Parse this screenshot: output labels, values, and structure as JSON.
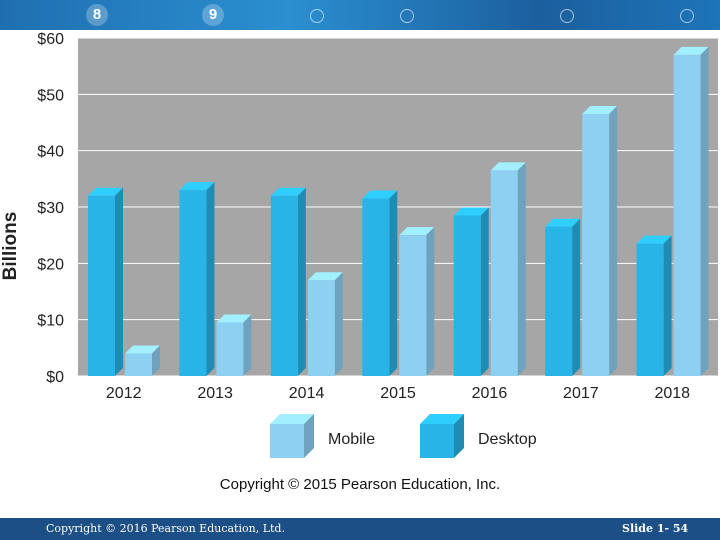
{
  "slide": {
    "footer_copyright": "Copyright © 2016 Pearson Education, Ltd.",
    "slide_number": "Slide 1- 54",
    "banner_glyphs": [
      "8",
      "9"
    ],
    "colors": {
      "banner": "#1f6fb0",
      "footer": "#1c4f86",
      "plot_bg": "#a6a6a6",
      "mobile": "#8dd0f2",
      "desktop": "#28b4e6"
    }
  },
  "chart_data": {
    "type": "bar",
    "title": "",
    "xlabel": "",
    "ylabel": "Billions",
    "ylim": [
      0,
      60
    ],
    "yticks": [
      "$0",
      "$10",
      "$20",
      "$30",
      "$40",
      "$50",
      "$60"
    ],
    "categories": [
      "2012",
      "2013",
      "2014",
      "2015",
      "2016",
      "2017",
      "2018"
    ],
    "series": [
      {
        "name": "Desktop",
        "values": [
          32,
          33,
          32,
          31.5,
          28.5,
          26.5,
          23.5
        ]
      },
      {
        "name": "Mobile",
        "values": [
          4,
          9.5,
          17,
          25,
          36.5,
          46.5,
          57
        ]
      }
    ],
    "legend": [
      "Mobile",
      "Desktop"
    ],
    "legend_position": "bottom",
    "grid": true,
    "source_note": "Copyright © 2015 Pearson Education, Inc."
  }
}
